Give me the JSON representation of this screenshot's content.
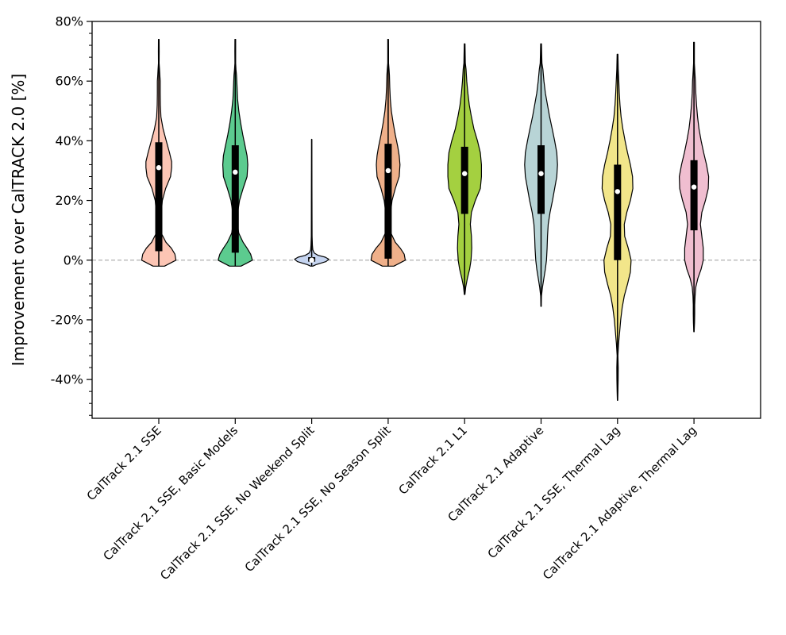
{
  "chart_data": {
    "type": "violin",
    "title": "",
    "xlabel": "",
    "ylabel": "Improvement over CalTRACK 2.0 [%]",
    "ylim": [
      -53,
      80
    ],
    "yticks": [
      -40,
      -20,
      0,
      20,
      40,
      60,
      80
    ],
    "ytick_suffix": "%",
    "reference_line": 0,
    "categories": [
      "CalTrack 2.1 SSE",
      "CalTrack 2.1 SSE, Basic Models",
      "CalTrack 2.1 SSE, No Weekend Split",
      "CalTrack 2.1 SSE, No Season Split",
      "CalTrack 2.1 L1",
      "CalTrack 2.1 Adaptive",
      "CalTrack 2.1 SSE, Thermal Lag",
      "CalTrack 2.1 Adaptive, Thermal Lag"
    ],
    "series": [
      {
        "name": "CalTrack 2.1 SSE",
        "color": "#fcc5b4",
        "min": -2,
        "max": 74,
        "q1": 3,
        "median": 31,
        "q3": 39.5,
        "profile": [
          [
            -2,
            0.16
          ],
          [
            0,
            0.48
          ],
          [
            2,
            0.45
          ],
          [
            4,
            0.35
          ],
          [
            6,
            0.2
          ],
          [
            9,
            0.07
          ],
          [
            12,
            0.06
          ],
          [
            16,
            0.07
          ],
          [
            20,
            0.1
          ],
          [
            24,
            0.19
          ],
          [
            28,
            0.33
          ],
          [
            31,
            0.36
          ],
          [
            33,
            0.36
          ],
          [
            36,
            0.3
          ],
          [
            40,
            0.21
          ],
          [
            44,
            0.12
          ],
          [
            48,
            0.06
          ],
          [
            52,
            0.045
          ],
          [
            56,
            0.04
          ],
          [
            60,
            0.04
          ],
          [
            62,
            0.03
          ],
          [
            64,
            0.02
          ],
          [
            66,
            0.01
          ],
          [
            70,
            0.012
          ],
          [
            74,
            0.01
          ]
        ]
      },
      {
        "name": "CalTrack 2.1 SSE, Basic Models",
        "color": "#5ccb8f",
        "min": -2,
        "max": 74,
        "q1": 2.5,
        "median": 29.5,
        "q3": 38.5,
        "profile": [
          [
            -2,
            0.16
          ],
          [
            0,
            0.48
          ],
          [
            2,
            0.43
          ],
          [
            4,
            0.33
          ],
          [
            6,
            0.22
          ],
          [
            9,
            0.1
          ],
          [
            12,
            0.06
          ],
          [
            16,
            0.07
          ],
          [
            20,
            0.12
          ],
          [
            24,
            0.22
          ],
          [
            28,
            0.33
          ],
          [
            32,
            0.35
          ],
          [
            35,
            0.33
          ],
          [
            38,
            0.28
          ],
          [
            42,
            0.21
          ],
          [
            46,
            0.15
          ],
          [
            50,
            0.1
          ],
          [
            54,
            0.065
          ],
          [
            58,
            0.05
          ],
          [
            62,
            0.035
          ],
          [
            64,
            0.02
          ],
          [
            66,
            0.01
          ],
          [
            70,
            0.012
          ],
          [
            74,
            0.01
          ]
        ]
      },
      {
        "name": "CalTrack 2.1 SSE, No Weekend Split",
        "color": "#c5d4f0",
        "min": -2,
        "max": 40.5,
        "q1": -0.5,
        "median": 0,
        "q3": 1,
        "profile": [
          [
            -2,
            0.03
          ],
          [
            -1.5,
            0.12
          ],
          [
            -0.5,
            0.4
          ],
          [
            0.3,
            0.48
          ],
          [
            1,
            0.38
          ],
          [
            1.6,
            0.18
          ],
          [
            2.4,
            0.07
          ],
          [
            3.5,
            0.03
          ],
          [
            5,
            0.02
          ],
          [
            8,
            0.012
          ],
          [
            15,
            0.008
          ],
          [
            25,
            0.006
          ],
          [
            32,
            0.005
          ],
          [
            40.5,
            0.003
          ]
        ]
      },
      {
        "name": "CalTrack 2.1 SSE, No Season Split",
        "color": "#efb08a",
        "min": -2,
        "max": 74,
        "q1": 0.5,
        "median": 30,
        "q3": 39,
        "profile": [
          [
            -2,
            0.16
          ],
          [
            0,
            0.48
          ],
          [
            2,
            0.45
          ],
          [
            4,
            0.34
          ],
          [
            6,
            0.2
          ],
          [
            9,
            0.08
          ],
          [
            12,
            0.06
          ],
          [
            16,
            0.07
          ],
          [
            20,
            0.11
          ],
          [
            24,
            0.2
          ],
          [
            28,
            0.31
          ],
          [
            32,
            0.33
          ],
          [
            35,
            0.31
          ],
          [
            38,
            0.27
          ],
          [
            42,
            0.2
          ],
          [
            46,
            0.14
          ],
          [
            50,
            0.09
          ],
          [
            54,
            0.06
          ],
          [
            58,
            0.045
          ],
          [
            62,
            0.035
          ],
          [
            64,
            0.025
          ],
          [
            66,
            0.012
          ],
          [
            70,
            0.012
          ],
          [
            74,
            0.01
          ]
        ]
      },
      {
        "name": "CalTrack 2.1 L1",
        "color": "#a4d040",
        "min": -11.5,
        "max": 72.5,
        "q1": 15.5,
        "median": 29,
        "q3": 38,
        "profile": [
          [
            -11.5,
            0.008
          ],
          [
            -9,
            0.03
          ],
          [
            -6,
            0.08
          ],
          [
            -3,
            0.14
          ],
          [
            0,
            0.18
          ],
          [
            4,
            0.2
          ],
          [
            8,
            0.19
          ],
          [
            12,
            0.16
          ],
          [
            16,
            0.19
          ],
          [
            20,
            0.3
          ],
          [
            24,
            0.44
          ],
          [
            28,
            0.47
          ],
          [
            32,
            0.47
          ],
          [
            36,
            0.44
          ],
          [
            40,
            0.36
          ],
          [
            44,
            0.26
          ],
          [
            48,
            0.19
          ],
          [
            52,
            0.13
          ],
          [
            56,
            0.09
          ],
          [
            60,
            0.06
          ],
          [
            64,
            0.04
          ],
          [
            66,
            0.02
          ],
          [
            69,
            0.015
          ],
          [
            72.5,
            0.01
          ]
        ]
      },
      {
        "name": "CalTrack 2.1 Adaptive",
        "color": "#b8d4d6",
        "min": -15.5,
        "max": 72.5,
        "q1": 15.5,
        "median": 29,
        "q3": 38.5,
        "profile": [
          [
            -15.5,
            0.005
          ],
          [
            -12,
            0.012
          ],
          [
            -9,
            0.04
          ],
          [
            -6,
            0.08
          ],
          [
            -3,
            0.12
          ],
          [
            0,
            0.15
          ],
          [
            4,
            0.17
          ],
          [
            8,
            0.18
          ],
          [
            12,
            0.2
          ],
          [
            16,
            0.25
          ],
          [
            20,
            0.32
          ],
          [
            24,
            0.38
          ],
          [
            28,
            0.44
          ],
          [
            32,
            0.46
          ],
          [
            36,
            0.44
          ],
          [
            40,
            0.38
          ],
          [
            44,
            0.31
          ],
          [
            48,
            0.24
          ],
          [
            52,
            0.18
          ],
          [
            56,
            0.12
          ],
          [
            60,
            0.08
          ],
          [
            64,
            0.05
          ],
          [
            66,
            0.025
          ],
          [
            69,
            0.018
          ],
          [
            72.5,
            0.01
          ]
        ]
      },
      {
        "name": "CalTrack 2.1 SSE, Thermal Lag",
        "color": "#f2e68a",
        "min": -47,
        "max": 69,
        "q1": 0,
        "median": 23,
        "q3": 32,
        "profile": [
          [
            -47,
            0.005
          ],
          [
            -44,
            0.01
          ],
          [
            -40,
            0.018
          ],
          [
            -36,
            0.02
          ],
          [
            -32,
            0.012
          ],
          [
            -28,
            0.03
          ],
          [
            -24,
            0.06
          ],
          [
            -20,
            0.09
          ],
          [
            -16,
            0.13
          ],
          [
            -12,
            0.19
          ],
          [
            -8,
            0.28
          ],
          [
            -4,
            0.36
          ],
          [
            0,
            0.38
          ],
          [
            4,
            0.3
          ],
          [
            8,
            0.2
          ],
          [
            12,
            0.19
          ],
          [
            16,
            0.26
          ],
          [
            20,
            0.36
          ],
          [
            24,
            0.43
          ],
          [
            28,
            0.42
          ],
          [
            32,
            0.36
          ],
          [
            36,
            0.28
          ],
          [
            40,
            0.21
          ],
          [
            44,
            0.15
          ],
          [
            48,
            0.1
          ],
          [
            52,
            0.07
          ],
          [
            56,
            0.05
          ],
          [
            60,
            0.035
          ],
          [
            64,
            0.02
          ],
          [
            69,
            0.01
          ]
        ]
      },
      {
        "name": "CalTrack 2.1 Adaptive, Thermal Lag",
        "color": "#f0bed0",
        "min": -24,
        "max": 73,
        "q1": 10,
        "median": 24.5,
        "q3": 33.5,
        "profile": [
          [
            -24,
            0.005
          ],
          [
            -21,
            0.015
          ],
          [
            -18,
            0.02
          ],
          [
            -15,
            0.02
          ],
          [
            -12,
            0.03
          ],
          [
            -9,
            0.05
          ],
          [
            -6,
            0.11
          ],
          [
            -3,
            0.2
          ],
          [
            0,
            0.26
          ],
          [
            4,
            0.26
          ],
          [
            8,
            0.22
          ],
          [
            12,
            0.18
          ],
          [
            16,
            0.22
          ],
          [
            20,
            0.32
          ],
          [
            24,
            0.4
          ],
          [
            28,
            0.41
          ],
          [
            32,
            0.35
          ],
          [
            36,
            0.27
          ],
          [
            40,
            0.2
          ],
          [
            44,
            0.14
          ],
          [
            48,
            0.1
          ],
          [
            52,
            0.07
          ],
          [
            56,
            0.05
          ],
          [
            60,
            0.04
          ],
          [
            63,
            0.025
          ],
          [
            66,
            0.012
          ],
          [
            69,
            0.012
          ],
          [
            73,
            0.01
          ]
        ]
      }
    ]
  }
}
